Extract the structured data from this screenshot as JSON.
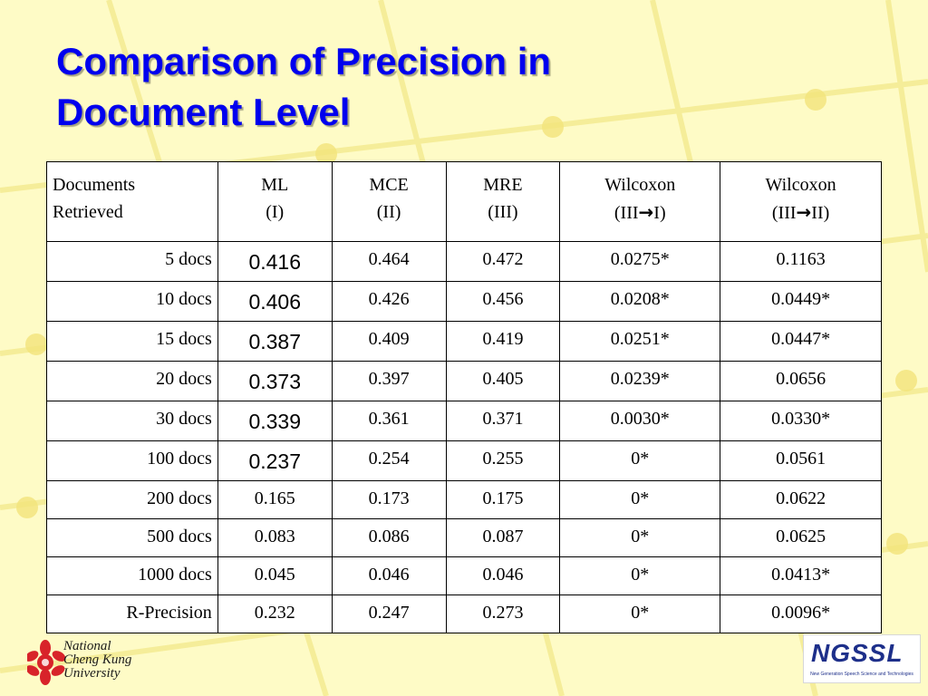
{
  "slide": {
    "title_line1": "Comparison of Precision in",
    "title_line2": "Document Level",
    "colors": {
      "background": "#fefbc6",
      "title": "#0000ee",
      "table_background": "#ffffff"
    }
  },
  "table": {
    "headers": [
      {
        "line1": "Documents",
        "line2": "Retrieved"
      },
      {
        "line1": "ML",
        "line2": "(I)"
      },
      {
        "line1": "MCE",
        "line2": "(II)"
      },
      {
        "line1": "MRE",
        "line2": "(III)"
      },
      {
        "line1": "Wilcoxon",
        "line2_pre": "(III",
        "arrow": "→",
        "line2_post": "I)"
      },
      {
        "line1": "Wilcoxon",
        "line2_pre": "(III",
        "arrow": "→",
        "line2_post": "II)"
      }
    ],
    "rows": [
      [
        "5 docs",
        "0.416",
        "0.464",
        "0.472",
        "0.0275*",
        "0.1163"
      ],
      [
        "10 docs",
        "0.406",
        "0.426",
        "0.456",
        "0.0208*",
        "0.0449*"
      ],
      [
        "15 docs",
        "0.387",
        "0.409",
        "0.419",
        "0.0251*",
        "0.0447*"
      ],
      [
        "20 docs",
        "0.373",
        "0.397",
        "0.405",
        "0.0239*",
        "0.0656"
      ],
      [
        "30 docs",
        "0.339",
        "0.361",
        "0.371",
        "0.0030*",
        "0.0330*"
      ],
      [
        "100 docs",
        "0.237",
        "0.254",
        "0.255",
        "0*",
        "0.0561"
      ],
      [
        "200 docs",
        "0.165",
        "0.173",
        "0.175",
        "0*",
        "0.0622"
      ],
      [
        "500 docs",
        "0.083",
        "0.086",
        "0.087",
        "0*",
        "0.0625"
      ],
      [
        "1000 docs",
        "0.045",
        "0.046",
        "0.046",
        "0*",
        "0.0413*"
      ],
      [
        "R-Precision",
        "0.232",
        "0.247",
        "0.273",
        "0*",
        "0.0096*"
      ]
    ]
  },
  "logos": {
    "ncku": {
      "line1": "National",
      "line2": "Cheng Kung",
      "line3": "University"
    },
    "ngssl": {
      "mark": "NGSSL",
      "subtitle": "New Generation Speech Science and Technologies"
    }
  }
}
